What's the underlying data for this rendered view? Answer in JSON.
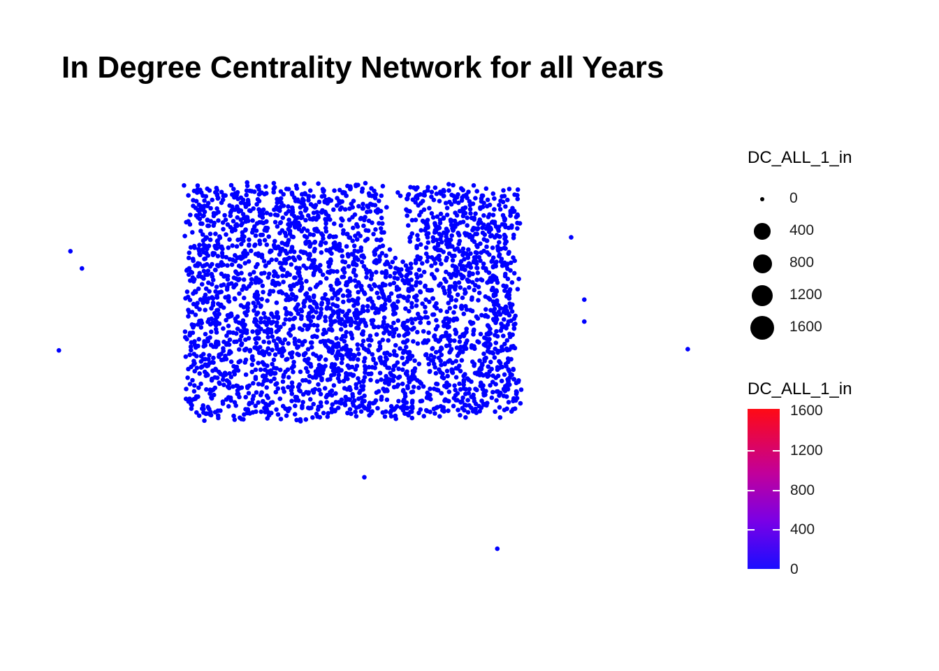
{
  "title": "In Degree Centrality Network for all Years",
  "legend": {
    "size": {
      "title": "DC_ALL_1_in",
      "entries": [
        {
          "label": "0",
          "value": 0
        },
        {
          "label": "400",
          "value": 400
        },
        {
          "label": "800",
          "value": 800
        },
        {
          "label": "1200",
          "value": 1200
        },
        {
          "label": "1600",
          "value": 1600
        }
      ]
    },
    "color": {
      "title": "DC_ALL_1_in",
      "ticks": [
        "1600",
        "1200",
        "800",
        "400",
        "0"
      ],
      "low_color": "#1a0dff",
      "high_color": "#ff0a14"
    }
  },
  "chart_data": {
    "type": "scatter",
    "title": "In Degree Centrality Network for all Years",
    "xlabel": "",
    "ylabel": "",
    "grid": false,
    "axes_visible": false,
    "legend_position": "right",
    "point_color": "#0000ff",
    "size_variable": "DC_ALL_1_in",
    "color_variable": "DC_ALL_1_in",
    "value_range": [
      0,
      1600
    ],
    "cluster": {
      "description_points": 3200,
      "x_range": [
        -1.0,
        1.0
      ],
      "y_range": [
        -1.0,
        1.0
      ]
    },
    "outliers": [
      {
        "x": -1.72,
        "y": 0.44
      },
      {
        "x": -1.65,
        "y": 0.29
      },
      {
        "x": -1.79,
        "y": -0.42
      },
      {
        "x": -0.43,
        "y": 0.62
      },
      {
        "x": 0.18,
        "y": 0.68
      },
      {
        "x": 0.67,
        "y": 0.81
      },
      {
        "x": 0.61,
        "y": 0.62
      },
      {
        "x": 1.33,
        "y": 0.56
      },
      {
        "x": 1.41,
        "y": 0.02
      },
      {
        "x": 1.41,
        "y": -0.17
      },
      {
        "x": 2.04,
        "y": -0.41
      },
      {
        "x": 0.07,
        "y": -1.52
      },
      {
        "x": 0.88,
        "y": -2.14
      }
    ]
  }
}
